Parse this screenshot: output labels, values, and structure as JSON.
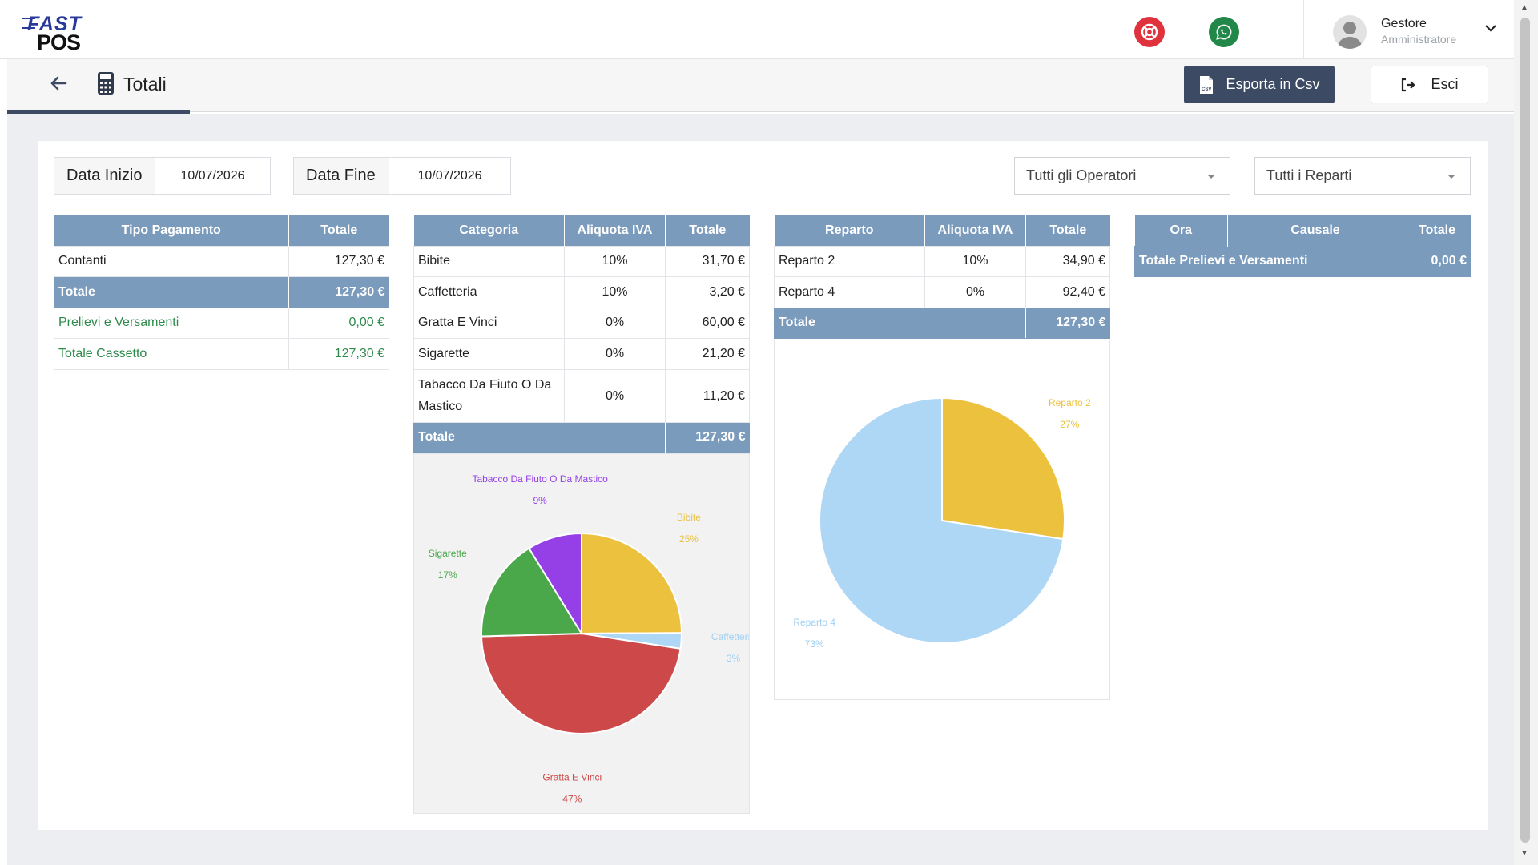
{
  "header": {
    "logo_top": "FAST",
    "logo_bottom": "POS",
    "user_name": "Gestore",
    "user_role": "Amministratore"
  },
  "toolbar": {
    "page_title": "Totali",
    "export_label": "Esporta in Csv",
    "exit_label": "Esci"
  },
  "filters": {
    "start_label": "Data Inizio",
    "start_value": "10/07/2026",
    "end_label": "Data Fine",
    "end_value": "10/07/2026",
    "operators_selected": "Tutti gli Operatori",
    "departments_selected": "Tutti i Reparti"
  },
  "payments": {
    "headers": [
      "Tipo Pagamento",
      "Totale"
    ],
    "rows": [
      {
        "label": "Contanti",
        "value": "127,30 €"
      }
    ],
    "total": {
      "label": "Totale",
      "value": "127,30 €"
    },
    "withdrawals": {
      "label": "Prelievi e Versamenti",
      "value": "0,00 €"
    },
    "drawer": {
      "label": "Totale Cassetto",
      "value": "127,30 €"
    }
  },
  "categories": {
    "headers": [
      "Categoria",
      "Aliquota IVA",
      "Totale"
    ],
    "rows": [
      {
        "name": "Bibite",
        "vat": "10%",
        "total": "31,70 €"
      },
      {
        "name": "Caffetteria",
        "vat": "10%",
        "total": "3,20 €"
      },
      {
        "name": "Gratta E Vinci",
        "vat": "0%",
        "total": "60,00 €"
      },
      {
        "name": "Sigarette",
        "vat": "0%",
        "total": "21,20 €"
      },
      {
        "name": "Tabacco Da Fiuto O Da Mastico",
        "vat": "0%",
        "total": "11,20 €"
      }
    ],
    "total": {
      "label": "Totale",
      "value": "127,30 €"
    }
  },
  "departments": {
    "headers": [
      "Reparto",
      "Aliquota IVA",
      "Totale"
    ],
    "rows": [
      {
        "name": "Reparto 2",
        "vat": "10%",
        "total": "34,90 €"
      },
      {
        "name": "Reparto 4",
        "vat": "0%",
        "total": "92,40 €"
      }
    ],
    "total": {
      "label": "Totale",
      "value": "127,30 €"
    }
  },
  "movements": {
    "headers": [
      "Ora",
      "Causale",
      "Totale"
    ],
    "total": {
      "label": "Totale Prelievi e Versamenti",
      "value": "0,00 €"
    }
  },
  "icons": {
    "back": "arrow-left-icon",
    "calculator": "calculator-icon",
    "help": "lifebuoy-icon",
    "whatsapp": "whatsapp-icon",
    "csv": "csv-file-icon",
    "exit": "sign-out-icon",
    "chevron": "chevron-down-icon"
  },
  "colors": {
    "brand_dark": "#3c4b63",
    "table_header": "#7b9bbd",
    "positive_green": "#2e8a4b",
    "help_red": "#e0323c",
    "whatsapp_green": "#21884a"
  },
  "chart_data": [
    {
      "type": "pie",
      "slices": [
        {
          "name": "Bibite",
          "percent": 25,
          "value": 31.7,
          "color": "#ecc13e"
        },
        {
          "name": "Caffetteria",
          "percent": 3,
          "value": 3.2,
          "color": "#aed6f5"
        },
        {
          "name": "Gratta E Vinci",
          "percent": 47,
          "value": 60.0,
          "color": "#cd4848"
        },
        {
          "name": "Sigarette",
          "percent": 17,
          "value": 21.2,
          "color": "#4aa84a"
        },
        {
          "name": "Tabacco Da Fiuto O Da Mastico",
          "percent": 9,
          "value": 11.2,
          "color": "#9440e6"
        }
      ]
    },
    {
      "type": "pie",
      "slices": [
        {
          "name": "Reparto 2",
          "percent": 27,
          "value": 34.9,
          "color": "#ecc13e"
        },
        {
          "name": "Reparto 4",
          "percent": 73,
          "value": 92.4,
          "color": "#aed6f5"
        }
      ]
    }
  ]
}
